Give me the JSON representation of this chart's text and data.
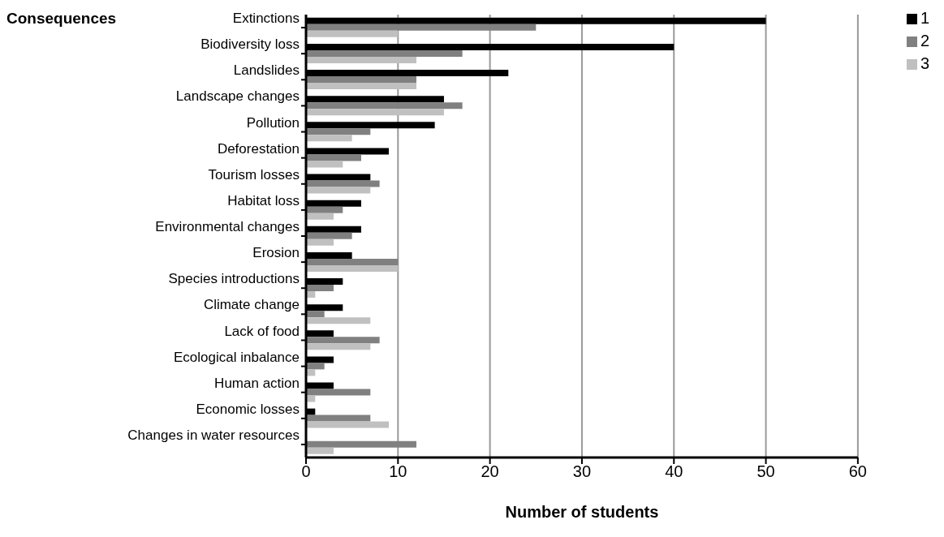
{
  "chart_data": {
    "type": "bar",
    "orientation": "horizontal",
    "title": "Consequences",
    "xlabel": "Number of students",
    "categories": [
      "Extinctions",
      "Biodiversity loss",
      "Landslides",
      "Landscape changes",
      "Pollution",
      "Deforestation",
      "Tourism losses",
      "Habitat loss",
      "Environmental changes",
      "Erosion",
      "Species introductions",
      "Climate change",
      "Lack of food",
      "Ecological inbalance",
      "Human action",
      "Economic losses",
      "Changes in water resources"
    ],
    "series": [
      {
        "name": "1",
        "color": "#000000",
        "values": [
          50,
          40,
          22,
          15,
          14,
          9,
          7,
          6,
          6,
          5,
          4,
          4,
          3,
          3,
          3,
          1,
          0
        ]
      },
      {
        "name": "2",
        "color": "#808080",
        "values": [
          25,
          17,
          12,
          17,
          7,
          6,
          8,
          4,
          5,
          10,
          3,
          2,
          8,
          2,
          7,
          7,
          12
        ]
      },
      {
        "name": "3",
        "color": "#c0c0c0",
        "values": [
          10,
          12,
          12,
          15,
          5,
          4,
          7,
          3,
          3,
          10,
          1,
          7,
          7,
          1,
          1,
          9,
          3
        ]
      }
    ],
    "xlim": [
      0,
      60
    ],
    "xticks": [
      0,
      10,
      20,
      30,
      40,
      50,
      60
    ],
    "grid": "x",
    "legend": "top right"
  }
}
